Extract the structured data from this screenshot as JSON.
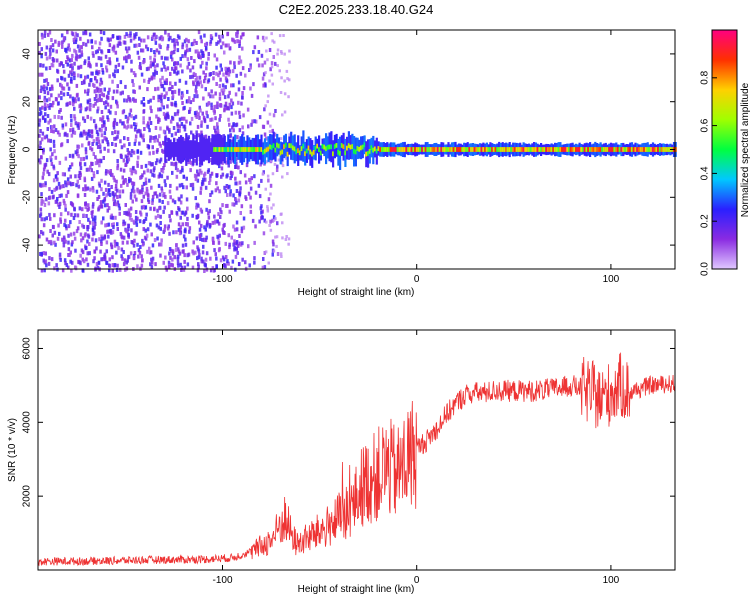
{
  "title": "C2E2.2025.233.18.40.G24",
  "chart_data": [
    {
      "type": "heatmap",
      "xlabel": "Height of straight line (km)",
      "ylabel": "Frequency (Hz)",
      "xlim": [
        -195,
        133
      ],
      "ylim": [
        -50,
        50
      ],
      "xticks": [
        -100,
        0,
        100
      ],
      "yticks": [
        -40,
        -20,
        0,
        20,
        40
      ],
      "colorbar": {
        "label": "Normalized spectral amplitude",
        "range": [
          0.0,
          1.0
        ],
        "ticks": [
          0.0,
          0.2,
          0.4,
          0.6,
          0.8
        ],
        "colors": [
          "#e0c8ff",
          "#8a2be2",
          "#2a20ff",
          "#00c8ff",
          "#00ff40",
          "#a0ff00",
          "#ffd000",
          "#ff3000",
          "#ff0080"
        ]
      },
      "description_points": {
        "noise_region_km": [
          -195,
          -90
        ],
        "signal_start_km": -130,
        "carrier_frequency_hz": 0
      }
    },
    {
      "type": "line",
      "xlabel": "Height of straight line (km)",
      "ylabel": "SNR (10 * v/v)",
      "xlim": [
        -195,
        133
      ],
      "ylim": [
        0,
        6500
      ],
      "xticks": [
        -100,
        0,
        100
      ],
      "yticks": [
        2000,
        4000,
        6000
      ],
      "color": "#ee3333",
      "x": [
        -195,
        -170,
        -140,
        -110,
        -95,
        -85,
        -75,
        -68,
        -62,
        -55,
        -48,
        -40,
        -33,
        -28,
        -22,
        -15,
        -10,
        -5,
        0,
        5,
        10,
        15,
        20,
        25,
        30,
        35,
        40,
        50,
        60,
        70,
        80,
        85,
        90,
        95,
        100,
        105,
        110,
        120,
        133
      ],
      "y": [
        230,
        240,
        270,
        290,
        330,
        500,
        800,
        1400,
        700,
        900,
        1100,
        1400,
        1700,
        2300,
        2500,
        2800,
        2600,
        3000,
        3300,
        3500,
        3800,
        4200,
        4500,
        4750,
        4800,
        4800,
        4850,
        4850,
        4850,
        4900,
        5000,
        4900,
        4800,
        4600,
        4800,
        5000,
        4800,
        5000,
        5050
      ]
    }
  ]
}
